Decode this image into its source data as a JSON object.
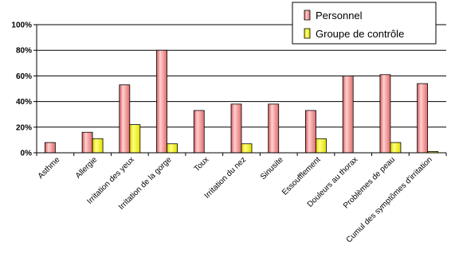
{
  "chart_data": {
    "type": "bar",
    "categories": [
      "Asthme",
      "Allergie",
      "Irritation des yeux",
      "Irritation de la gorge",
      "Toux",
      "Irritation du nez",
      "Sinusite",
      "Essoufflement",
      "Douleurs au thorax",
      "Problèmes de peau",
      "Cumul des symptômes d'irritation"
    ],
    "series": [
      {
        "name": "Personnel",
        "values": [
          8,
          16,
          53,
          80,
          33,
          38,
          38,
          33,
          60,
          61,
          54
        ]
      },
      {
        "name": "Groupe de contrôle",
        "values": [
          0,
          11,
          22,
          7,
          0,
          7,
          0,
          11,
          0,
          8,
          1
        ]
      }
    ],
    "ylim": [
      0,
      100
    ],
    "yticks": [
      "0%",
      "20%",
      "40%",
      "60%",
      "80%",
      "100%"
    ],
    "grid": true,
    "legend": "top-right",
    "colors": {
      "Personnel": "#F08080",
      "Groupe de contrôle": "#FFFF00",
      "grid": "#000000"
    }
  }
}
